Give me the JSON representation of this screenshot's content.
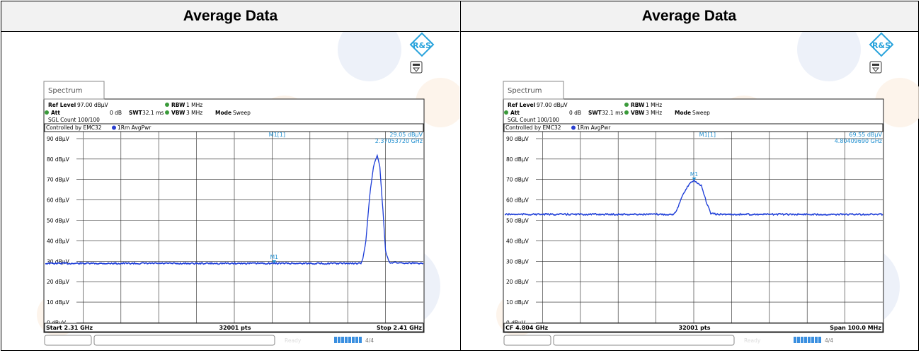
{
  "columns": [
    {
      "header": "Average Data",
      "tab_label": "Spectrum",
      "ref_level_label": "Ref Level",
      "ref_level_value": "97.00 dBµV",
      "att_label": "Att",
      "att_value": "0 dB",
      "swt_label": "SWT",
      "swt_value": "32.1 ms",
      "rbw_label": "RBW",
      "rbw_value": "1 MHz",
      "vbw_label": "VBW",
      "vbw_value": "3 MHz",
      "mode_label": "Mode",
      "mode_value": "Sweep",
      "sgl_count": "SGL Count 100/100",
      "controlled_by": "Controlled by EMC32",
      "trace_label": "1Rm AvgPwr",
      "marker_label": "M1[1]",
      "marker_value": "29.05 dBµV",
      "marker_freq": "2.37053720 GHz",
      "marker_tag": "M1",
      "footer_left": "Start 2.31 GHz",
      "footer_mid": "32001 pts",
      "footer_right": "Stop 2.41 GHz",
      "status_ready": "Ready",
      "status_device": "4/4",
      "y_ticks": [
        "90 dBµV",
        "80 dBµV",
        "70 dBµV",
        "60 dBµV",
        "50 dBµV",
        "40 dBµV",
        "30 dBµV",
        "20 dBµV",
        "10 dBµV",
        "0 dBµV"
      ]
    },
    {
      "header": "Average Data",
      "tab_label": "Spectrum",
      "ref_level_label": "Ref Level",
      "ref_level_value": "97.00 dBµV",
      "att_label": "Att",
      "att_value": "0 dB",
      "swt_label": "SWT",
      "swt_value": "32.1 ms",
      "rbw_label": "RBW",
      "rbw_value": "1 MHz",
      "vbw_label": "VBW",
      "vbw_value": "3 MHz",
      "mode_label": "Mode",
      "mode_value": "Sweep",
      "sgl_count": "SGL Count 100/100",
      "controlled_by": "Controlled by EMC32",
      "trace_label": "1Rm AvgPwr",
      "marker_label": "M1[1]",
      "marker_value": "69.55 dBµV",
      "marker_freq": "4.80409690 GHz",
      "marker_tag": "M1",
      "footer_left": "CF 4.804 GHz",
      "footer_mid": "32001 pts",
      "footer_right": "Span 100.0 MHz",
      "status_ready": "Ready",
      "status_device": "4/4",
      "y_ticks": [
        "90 dBµV",
        "80 dBµV",
        "70 dBµV",
        "60 dBµV",
        "50 dBµV",
        "40 dBµV",
        "30 dBµV",
        "20 dBµV",
        "10 dBµV",
        "0 dBµV"
      ]
    }
  ],
  "chart_data": [
    {
      "type": "line",
      "xlabel": "",
      "ylabel": "",
      "xlim": [
        2.31,
        2.41
      ],
      "ylim": [
        0,
        100
      ],
      "grid": true,
      "series": [
        {
          "name": "1Rm AvgPwr",
          "x": [
            2.31,
            2.33,
            2.35,
            2.37,
            2.39,
            2.3935,
            2.394,
            2.3948,
            2.3958,
            2.3968,
            2.3978,
            2.3985,
            2.3993,
            2.4,
            2.401,
            2.41
          ],
          "y": [
            29.0,
            29.0,
            29.0,
            29.05,
            29.0,
            29.0,
            31,
            40,
            62,
            76,
            82,
            76,
            55,
            35,
            29.5,
            29.0
          ]
        }
      ],
      "markers": [
        {
          "label": "M1",
          "x": 2.3705372,
          "y": 29.05
        }
      ],
      "display_line_y": 90
    },
    {
      "type": "line",
      "xlabel": "",
      "ylabel": "",
      "xlim": [
        4.754,
        4.854
      ],
      "ylim": [
        0,
        100
      ],
      "grid": true,
      "series": [
        {
          "name": "1Rm AvgPwr",
          "x": [
            4.754,
            4.774,
            4.794,
            4.7985,
            4.7995,
            4.801,
            4.803,
            4.8041,
            4.806,
            4.8075,
            4.8085,
            4.81,
            4.83,
            4.854
          ],
          "y": [
            53.0,
            53.0,
            53.0,
            53.0,
            55,
            62,
            68.5,
            69.55,
            67,
            58,
            53.5,
            53.0,
            53.0,
            53.0
          ]
        }
      ],
      "markers": [
        {
          "label": "M1",
          "x": 4.8040969,
          "y": 69.55
        }
      ],
      "display_line_y": 90
    }
  ],
  "colors": {
    "trace": "#1f3fd8",
    "label_blue": "#1f8fd0",
    "bullet_green": "#3a9a3a",
    "header_bg": "#f2f2f2",
    "status_bar": "#3a8fe0"
  },
  "logo_text": "R&S"
}
